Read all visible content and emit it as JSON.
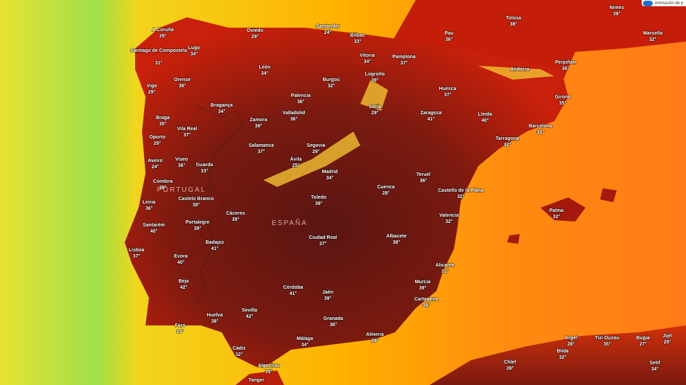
{
  "cities": [
    {
      "name": "A Coruña",
      "temp": "29°"
    },
    {
      "name": "Oviedo",
      "temp": "29°"
    },
    {
      "name": "Santander",
      "temp": "24°"
    },
    {
      "name": "Bilbao",
      "temp": "33°"
    },
    {
      "name": "Tolosa",
      "temp": "38°"
    },
    {
      "name": "Nimes",
      "temp": "39°"
    },
    {
      "name": "Marsella",
      "temp": "32°"
    },
    {
      "name": "Pau",
      "temp": "36°"
    },
    {
      "name": "Lugo",
      "temp": "34°"
    },
    {
      "name": "Santiago de Compostela",
      "temp": "31°"
    },
    {
      "name": "Vitoria",
      "temp": "34°"
    },
    {
      "name": "Pamplona",
      "temp": "37°"
    },
    {
      "name": "Logroño",
      "temp": "39°"
    },
    {
      "name": "Perpiñan",
      "temp": "36°"
    },
    {
      "name": "León",
      "temp": "34°"
    },
    {
      "name": "Orense",
      "temp": "38°"
    },
    {
      "name": "Burgos",
      "temp": "32°"
    },
    {
      "name": "Vigo",
      "temp": "29°"
    },
    {
      "name": "Huesca",
      "temp": "37°"
    },
    {
      "name": "Girona",
      "temp": "35°"
    },
    {
      "name": "Palencia",
      "temp": "36°"
    },
    {
      "name": "Bragança",
      "temp": "34°"
    },
    {
      "name": "Soria",
      "temp": "29°"
    },
    {
      "name": "Valladolid",
      "temp": "36°"
    },
    {
      "name": "Zaragoza",
      "temp": "41°"
    },
    {
      "name": "Lleida",
      "temp": "40°"
    },
    {
      "name": "Zamora",
      "temp": "39°"
    },
    {
      "name": "Braga",
      "temp": "35°"
    },
    {
      "name": "Vila Real",
      "temp": "37°"
    },
    {
      "name": "Barcelona",
      "temp": "32°"
    },
    {
      "name": "Oporto",
      "temp": "29°"
    },
    {
      "name": "Tarragona",
      "temp": "32°"
    },
    {
      "name": "Salamanca",
      "temp": "37°"
    },
    {
      "name": "Segovia",
      "temp": "29°"
    },
    {
      "name": "Viseo",
      "temp": "36°"
    },
    {
      "name": "Aveiro",
      "temp": "24°"
    },
    {
      "name": "Ávila",
      "temp": "25°"
    },
    {
      "name": "Guarda",
      "temp": "33°"
    },
    {
      "name": "Madrid",
      "temp": "34°"
    },
    {
      "name": "Teruel",
      "temp": "36°"
    },
    {
      "name": "Coimbra",
      "temp": "38°"
    },
    {
      "name": "Cuenca",
      "temp": "28°"
    },
    {
      "name": "Castello de la Plana",
      "temp": "32°"
    },
    {
      "name": "Toledo",
      "temp": "39°"
    },
    {
      "name": "Leiria",
      "temp": "36°"
    },
    {
      "name": "Castelo Branco",
      "temp": "39°"
    },
    {
      "name": "Palma",
      "temp": "32°"
    },
    {
      "name": "Cáceres",
      "temp": "39°"
    },
    {
      "name": "Valencia",
      "temp": "32°"
    },
    {
      "name": "Portalegre",
      "temp": "39°"
    },
    {
      "name": "Santarém",
      "temp": "40°"
    },
    {
      "name": "Ciudad Real",
      "temp": "37°"
    },
    {
      "name": "Albacete",
      "temp": "38°"
    },
    {
      "name": "Badajoz",
      "temp": "41°"
    },
    {
      "name": "Lisboa",
      "temp": "37°"
    },
    {
      "name": "Evora",
      "temp": "40°"
    },
    {
      "name": "Alicante",
      "temp": "31°"
    },
    {
      "name": "Beja",
      "temp": "42°"
    },
    {
      "name": "Murcia",
      "temp": "39°"
    },
    {
      "name": "Córdoba",
      "temp": "41°"
    },
    {
      "name": "Jaén",
      "temp": "39°"
    },
    {
      "name": "Cartagena",
      "temp": "34°"
    },
    {
      "name": "Sevilla",
      "temp": "42°"
    },
    {
      "name": "Huelva",
      "temp": "38°"
    },
    {
      "name": "Granada",
      "temp": "36°"
    },
    {
      "name": "Faro",
      "temp": "33°"
    },
    {
      "name": "Almeria",
      "temp": "29°"
    },
    {
      "name": "Málaga",
      "temp": "34°"
    },
    {
      "name": "Argel",
      "temp": "28°"
    },
    {
      "name": "Tizi Ouzou",
      "temp": "35°"
    },
    {
      "name": "Bugia",
      "temp": "27°"
    },
    {
      "name": "Jijel",
      "temp": "29°"
    },
    {
      "name": "Cádiz",
      "temp": "32°"
    },
    {
      "name": "Blida",
      "temp": "32°"
    },
    {
      "name": "Chlef",
      "temp": "39°"
    },
    {
      "name": "Setif",
      "temp": "34°"
    },
    {
      "name": "Algeciras",
      "temp": "35°"
    },
    {
      "name": "Tanger"
    },
    {
      "name": "Andorra"
    }
  ],
  "countries": [
    "PORTUGAL",
    "ESPAÑA"
  ],
  "toggle": "Animación de p"
}
